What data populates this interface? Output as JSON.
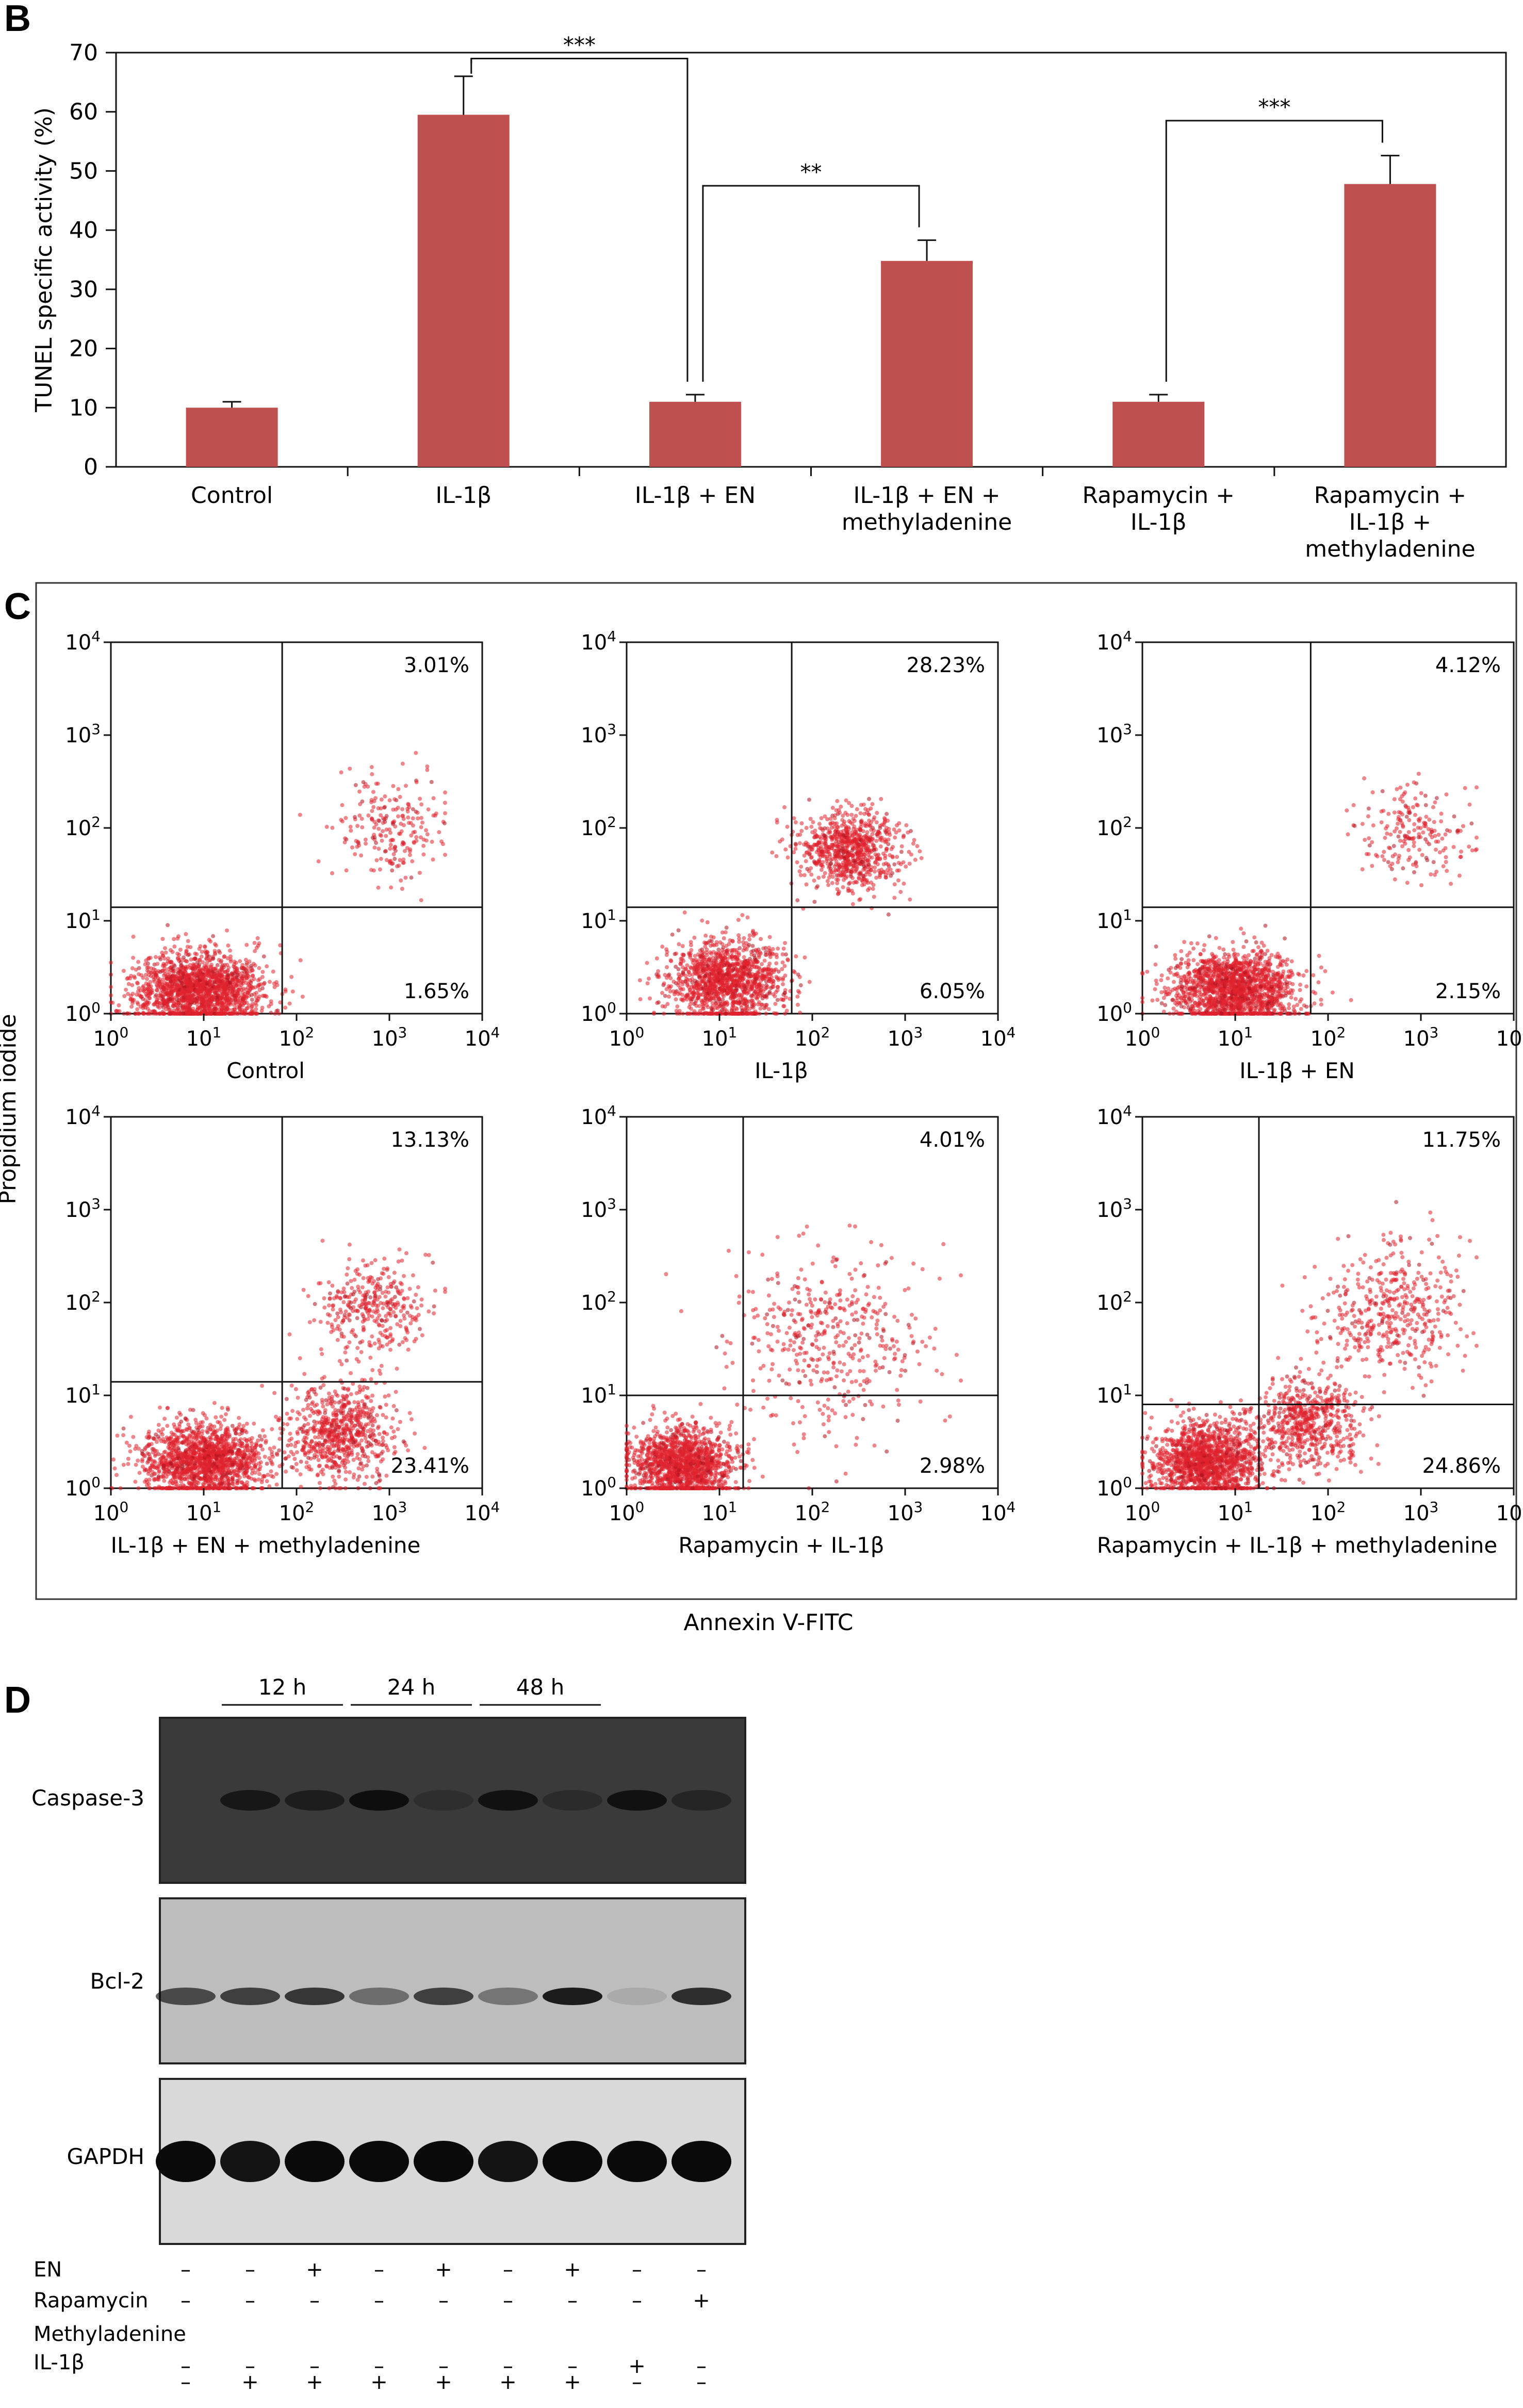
{
  "panels": {
    "b": "B",
    "c": "C",
    "d": "D"
  },
  "colors": {
    "bar": "#c0504f",
    "dot": "#e0232e",
    "dot_dark": "#b0101e",
    "axis": "#111111"
  },
  "chart_data": [
    {
      "type": "bar",
      "panel": "B",
      "ylabel": "TUNEL specific activity (%)",
      "ylim": [
        0,
        70
      ],
      "yticks": [
        0,
        10,
        20,
        30,
        40,
        50,
        60,
        70
      ],
      "categories": [
        [
          "Control"
        ],
        [
          "IL-1β"
        ],
        [
          "IL-1β + EN"
        ],
        [
          "IL-1β + EN +",
          "methyladenine"
        ],
        [
          "Rapamycin +",
          "IL-1β"
        ],
        [
          "Rapamycin +",
          "IL-1β +",
          "methyladenine"
        ]
      ],
      "values": [
        10,
        59.5,
        11,
        34.8,
        11,
        47.8
      ],
      "errors": [
        1,
        6.5,
        1.2,
        3.5,
        1.2,
        4.8
      ],
      "significance": [
        {
          "from": 1,
          "to": 2,
          "label": "***"
        },
        {
          "from": 2,
          "to": 3,
          "label": "**"
        },
        {
          "from": 4,
          "to": 5,
          "label": "***"
        }
      ]
    },
    {
      "type": "scatter",
      "panel": "C",
      "ylabel": "Propidium iodide",
      "xlabel": "Annexin V-FITC",
      "scale": "log",
      "xlim": [
        1,
        10000
      ],
      "ylim": [
        1,
        10000
      ],
      "tick_exponents": [
        "0",
        "1",
        "2",
        "3",
        "4"
      ],
      "tick_base": "10",
      "plots": [
        {
          "label": "Control",
          "upper_right": "3.01%",
          "lower_right": "1.65%",
          "gate_x": 70,
          "gate_y": 14,
          "populations": [
            {
              "cx": 9,
              "cy": 1.8,
              "sx": 0.35,
              "sy": 0.2,
              "n": 1700
            },
            {
              "cx": 1000,
              "cy": 100,
              "sx": 0.3,
              "sy": 0.3,
              "n": 220
            }
          ]
        },
        {
          "label": "IL-1β",
          "upper_right": "28.23%",
          "lower_right": "6.05%",
          "gate_x": 60,
          "gate_y": 14,
          "populations": [
            {
              "cx": 12,
              "cy": 2.2,
              "sx": 0.3,
              "sy": 0.22,
              "n": 1300
            },
            {
              "cx": 250,
              "cy": 60,
              "sx": 0.28,
              "sy": 0.22,
              "n": 800
            }
          ]
        },
        {
          "label": "IL-1β + EN",
          "upper_right": "4.12%",
          "lower_right": "2.15%",
          "gate_x": 65,
          "gate_y": 14,
          "populations": [
            {
              "cx": 10,
              "cy": 1.8,
              "sx": 0.33,
              "sy": 0.2,
              "n": 1600
            },
            {
              "cx": 900,
              "cy": 90,
              "sx": 0.3,
              "sy": 0.25,
              "n": 200
            }
          ]
        },
        {
          "label": "IL-1β + EN + methyladenine",
          "upper_right": "13.13%",
          "lower_right": "23.41%",
          "gate_x": 70,
          "gate_y": 14,
          "populations": [
            {
              "cx": 10,
              "cy": 2,
              "sx": 0.32,
              "sy": 0.2,
              "n": 1500
            },
            {
              "cx": 300,
              "cy": 4,
              "sx": 0.3,
              "sy": 0.25,
              "n": 700
            },
            {
              "cx": 600,
              "cy": 90,
              "sx": 0.3,
              "sy": 0.25,
              "n": 350
            }
          ]
        },
        {
          "label": "Rapamycin + IL-1β",
          "upper_right": "4.01%",
          "lower_right": "2.98%",
          "gate_x": 18,
          "gate_y": 10,
          "populations": [
            {
              "cx": 4,
              "cy": 1.8,
              "sx": 0.28,
              "sy": 0.2,
              "n": 1400
            },
            {
              "cx": 150,
              "cy": 40,
              "sx": 0.55,
              "sy": 0.5,
              "n": 450
            }
          ]
        },
        {
          "label": "Rapamycin + IL-1β + methyladenine",
          "upper_right": "11.75%",
          "lower_right": "24.86%",
          "gate_x": 18,
          "gate_y": 8,
          "populations": [
            {
              "cx": 5,
              "cy": 2,
              "sx": 0.3,
              "sy": 0.2,
              "n": 1400
            },
            {
              "cx": 60,
              "cy": 5,
              "sx": 0.3,
              "sy": 0.25,
              "n": 600
            },
            {
              "cx": 500,
              "cy": 80,
              "sx": 0.4,
              "sy": 0.35,
              "n": 450
            }
          ]
        }
      ]
    }
  ],
  "blot": {
    "time_labels": [
      "12 h",
      "24 h",
      "48 h"
    ],
    "proteins": [
      "Caspase-3",
      "Bcl-2",
      "GAPDH"
    ],
    "lanes": 9,
    "band_intensity": {
      "Caspase-3": [
        0.05,
        0.6,
        0.5,
        0.75,
        0.2,
        0.7,
        0.25,
        0.7,
        0.35
      ],
      "Bcl-2": [
        0.65,
        0.7,
        0.75,
        0.45,
        0.7,
        0.4,
        0.9,
        0.1,
        0.8
      ],
      "GAPDH": [
        1,
        0.95,
        1,
        1,
        1,
        0.95,
        1,
        1,
        1
      ]
    },
    "treatments": [
      {
        "label": "EN",
        "signs": [
          "–",
          "–",
          "+",
          "–",
          "+",
          "–",
          "+",
          "–",
          "–"
        ]
      },
      {
        "label": "Rapamycin",
        "signs": [
          "–",
          "–",
          "–",
          "–",
          "–",
          "–",
          "–",
          "–",
          "+"
        ]
      },
      {
        "label": "Methyladenine",
        "signs": [
          "–",
          "–",
          "–",
          "–",
          "–",
          "–",
          "–",
          "+",
          "–"
        ]
      },
      {
        "label": "IL-1β",
        "signs": [
          "–",
          "+",
          "+",
          "+",
          "+",
          "+",
          "+",
          "–",
          "–"
        ]
      }
    ]
  }
}
